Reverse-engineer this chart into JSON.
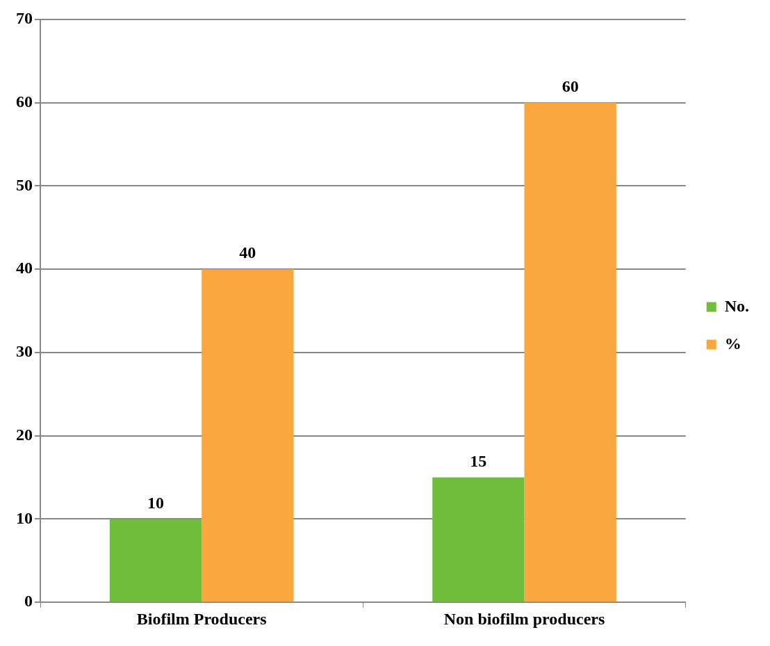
{
  "chart_data": {
    "type": "bar",
    "categories": [
      "Biofilm Producers",
      "Non biofilm producers"
    ],
    "series": [
      {
        "name": "No.",
        "color": "#70bf3a",
        "values": [
          10,
          15
        ]
      },
      {
        "name": "%",
        "color": "#f9a73e",
        "values": [
          40,
          60
        ]
      }
    ],
    "ylim": [
      0,
      70
    ],
    "yticks": [
      0,
      10,
      20,
      30,
      40,
      50,
      60,
      70
    ],
    "grid": "y",
    "legend": "right",
    "data_labels": true
  }
}
